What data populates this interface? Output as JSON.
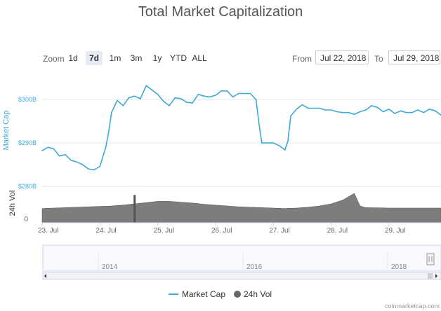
{
  "chart_data": {
    "type": "line",
    "title": "Total Market Capitalization",
    "ylabel": "Market Cap",
    "y2label": "24h Vol",
    "y_ticks": [
      "$300B",
      "$290B",
      "$280B"
    ],
    "y_tick_values": [
      300,
      290,
      280
    ],
    "ylim": [
      280,
      306
    ],
    "vol_tick": "0",
    "x_tick_labels": [
      "23. Jul",
      "24. Jul",
      "25. Jul",
      "26. Jul",
      "27. Jul",
      "28. Jul",
      "29. Jul"
    ],
    "xlim": [
      0,
      6.9
    ],
    "grid": true,
    "legend_position": "bottom-center",
    "series": [
      {
        "name": "Market Cap",
        "color": "#3fa9d8",
        "x": [
          0,
          0.1,
          0.2,
          0.3,
          0.4,
          0.5,
          0.6,
          0.7,
          0.8,
          0.9,
          1.0,
          1.1,
          1.15,
          1.2,
          1.3,
          1.4,
          1.5,
          1.6,
          1.7,
          1.8,
          1.9,
          2.0,
          2.1,
          2.2,
          2.3,
          2.4,
          2.5,
          2.6,
          2.7,
          2.8,
          2.9,
          3.0,
          3.1,
          3.2,
          3.3,
          3.4,
          3.5,
          3.6,
          3.7,
          3.75,
          3.8,
          3.9,
          4.0,
          4.1,
          4.2,
          4.25,
          4.3,
          4.4,
          4.5,
          4.6,
          4.7,
          4.8,
          4.9,
          5.0,
          5.1,
          5.2,
          5.3,
          5.4,
          5.5,
          5.6,
          5.7,
          5.8,
          5.9,
          6.0,
          6.1,
          6.2,
          6.3,
          6.4,
          6.5,
          6.6,
          6.7,
          6.8,
          6.9
        ],
        "values": [
          288.2,
          289.0,
          288.6,
          287.0,
          287.3,
          286.0,
          285.6,
          285.0,
          284.0,
          283.8,
          284.6,
          289.0,
          292.5,
          297.0,
          299.8,
          298.6,
          300.4,
          300.8,
          300.2,
          303.2,
          302.2,
          301.2,
          299.6,
          298.6,
          300.4,
          300.2,
          299.4,
          299.2,
          301.2,
          300.8,
          300.6,
          301.0,
          302.0,
          302.0,
          300.6,
          301.4,
          301.4,
          301.4,
          300.0,
          294.6,
          290.0,
          290.0,
          290.0,
          289.4,
          288.4,
          290.4,
          296.2,
          297.8,
          298.8,
          298.0,
          298.0,
          298.0,
          297.6,
          297.6,
          297.2,
          297.0,
          297.0,
          296.6,
          297.2,
          297.6,
          298.6,
          298.2,
          297.2,
          297.8,
          296.8,
          297.4,
          297.0,
          297.0,
          297.6,
          297.0,
          297.8,
          297.4,
          296.4
        ]
      },
      {
        "name": "24h Vol",
        "color": "#666666",
        "x": [
          0,
          0.2,
          0.4,
          0.6,
          0.8,
          1.0,
          1.2,
          1.4,
          1.6,
          1.8,
          2.0,
          2.2,
          2.4,
          2.6,
          2.8,
          3.0,
          3.2,
          3.4,
          3.6,
          3.8,
          4.0,
          4.2,
          4.4,
          4.6,
          4.8,
          5.0,
          5.2,
          5.4,
          5.5,
          5.6,
          5.8,
          6.0,
          6.2,
          6.4,
          6.6,
          6.8,
          6.9
        ],
        "values": [
          17,
          17.5,
          18,
          18.5,
          19,
          19.5,
          20,
          21,
          22.5,
          24,
          25.5,
          25.5,
          24.5,
          23.5,
          22,
          21,
          20,
          19,
          18.5,
          18,
          17.5,
          17,
          17.5,
          18.5,
          20,
          22.5,
          27,
          35,
          20,
          18,
          17.8,
          17.5,
          17.5,
          17.5,
          17.5,
          17.5,
          17.5
        ],
        "spike": {
          "x": 1.6,
          "value": 33
        }
      }
    ]
  },
  "controls": {
    "zoom_label": "Zoom",
    "zoom_options": [
      "1d",
      "7d",
      "1m",
      "3m",
      "1y",
      "YTD",
      "ALL"
    ],
    "zoom_selected": "7d",
    "from_label": "From",
    "from_value": "Jul 22, 2018",
    "to_label": "To",
    "to_value": "Jul 29, 2018"
  },
  "navigator": {
    "labels": [
      "2014",
      "2016",
      "2018"
    ]
  },
  "legend": {
    "items": [
      "Market Cap",
      "24h Vol"
    ]
  },
  "credit": "coinmarketcap.com"
}
